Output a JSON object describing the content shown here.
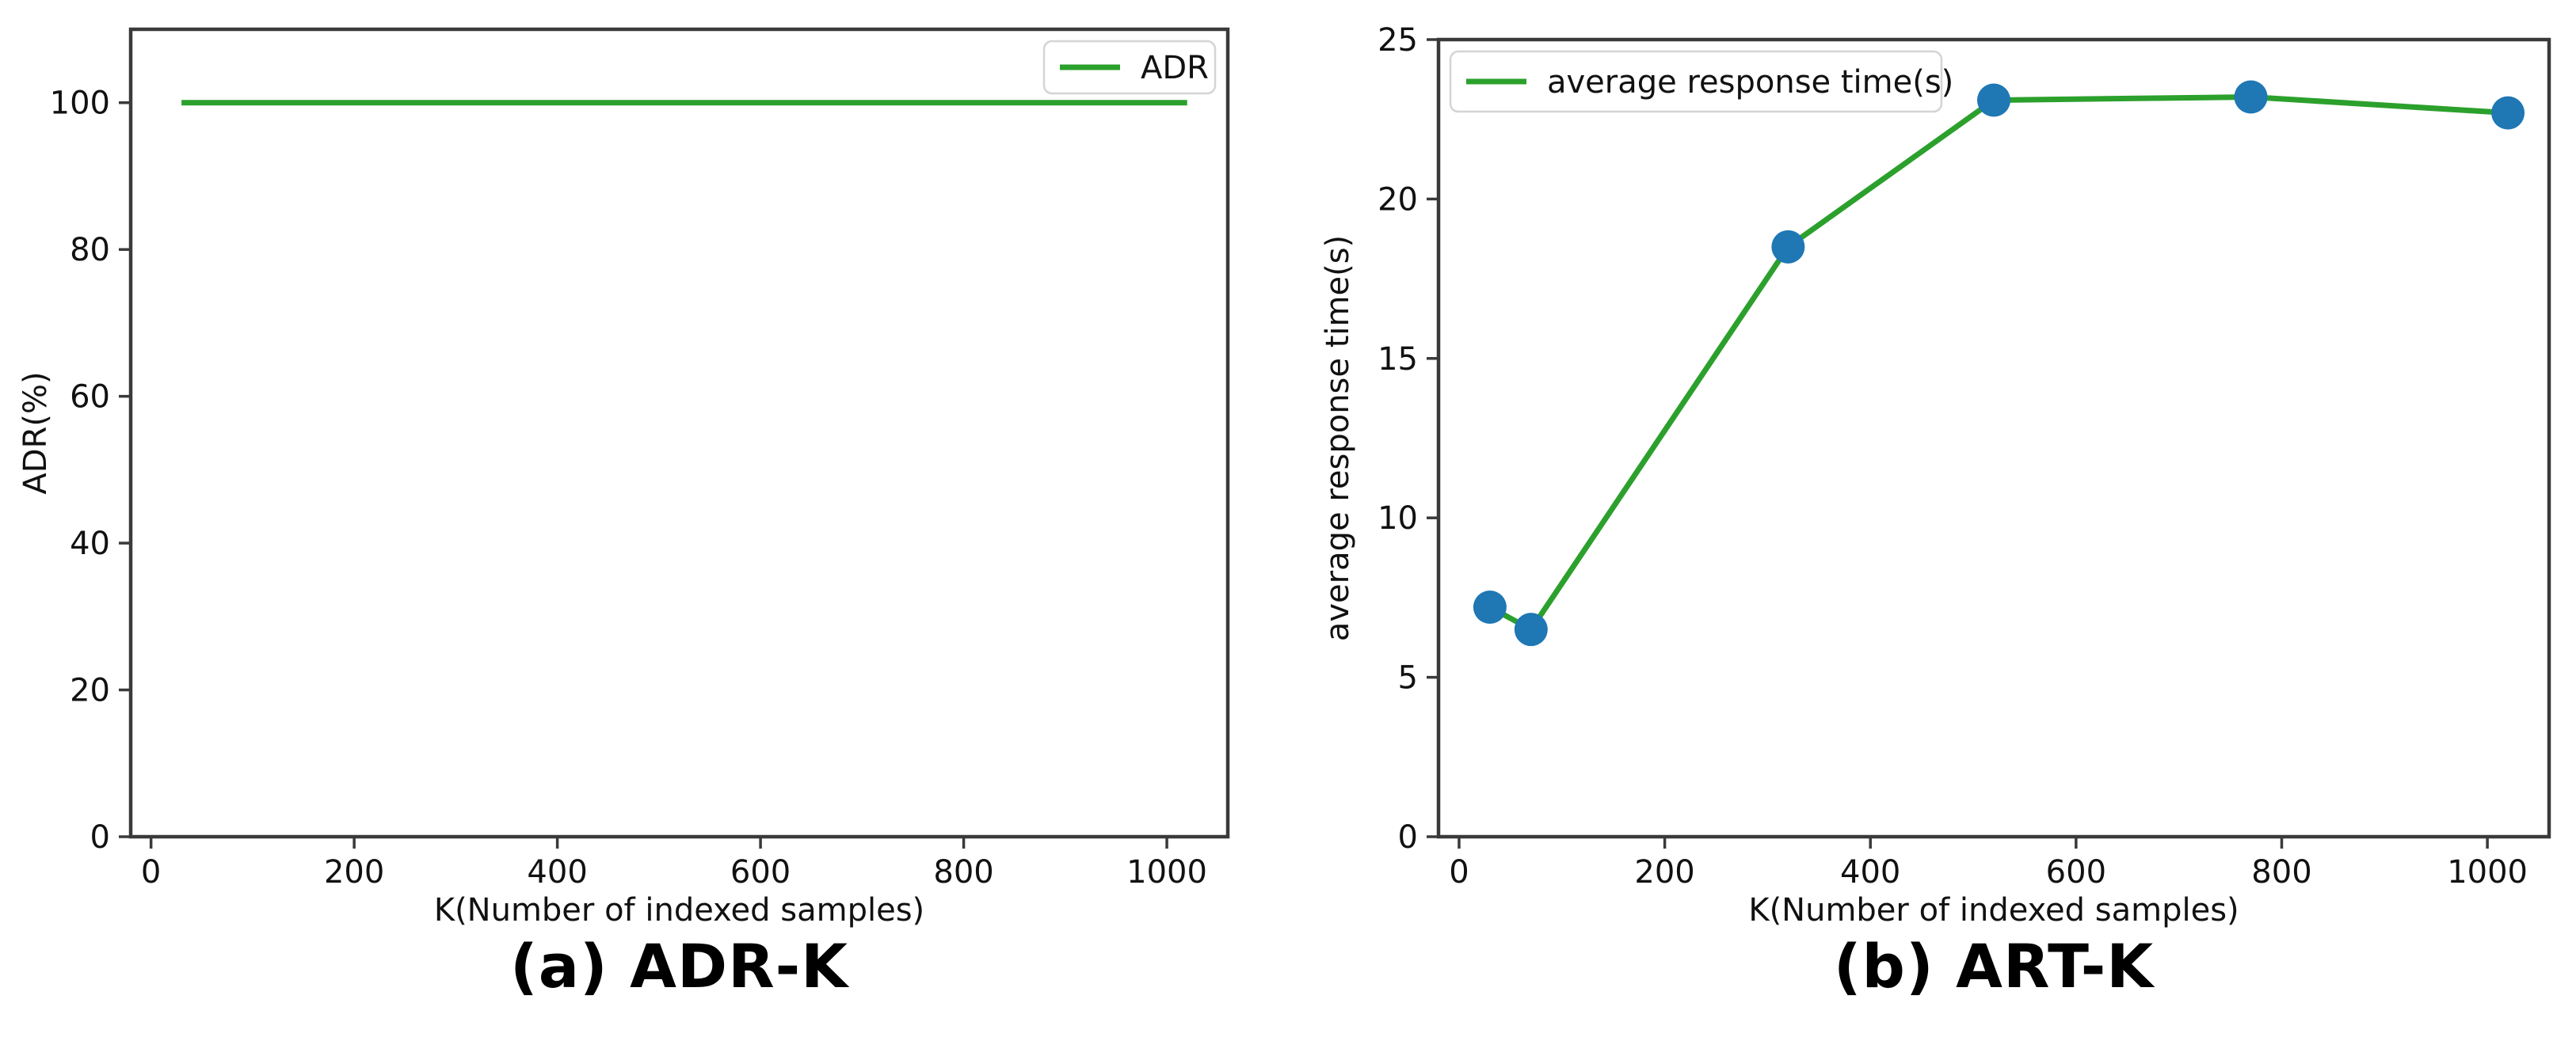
{
  "figure": {
    "background": "#ffffff"
  },
  "colors": {
    "line_green": "#2ca02c",
    "marker_blue": "#1f77b4",
    "axis": "#3a3a3a",
    "text": "#111111",
    "legend_border": "#d4d4d4",
    "legend_fill": "#ffffff"
  },
  "chart_data": [
    {
      "type": "line",
      "caption": "(a) ADR-K",
      "xlabel": "K(Number of indexed samples)",
      "ylabel": "ADR(%)",
      "xlim": [
        -20,
        1060
      ],
      "ylim": [
        0,
        110
      ],
      "xticks": [
        0,
        200,
        400,
        600,
        800,
        1000
      ],
      "yticks": [
        0,
        20,
        40,
        60,
        80,
        100
      ],
      "grid": false,
      "legend": {
        "label": "ADR",
        "position": "top-right"
      },
      "series": [
        {
          "name": "ADR",
          "x": [
            30,
            70,
            320,
            520,
            770,
            1020
          ],
          "y": [
            100,
            100,
            100,
            100,
            100,
            100
          ],
          "color": "#2ca02c",
          "marker": false
        }
      ]
    },
    {
      "type": "line",
      "caption": "(b) ART-K",
      "xlabel": "K(Number of indexed samples)",
      "ylabel": "average response time(s)",
      "xlim": [
        -20,
        1060
      ],
      "ylim": [
        0,
        25
      ],
      "xticks": [
        0,
        200,
        400,
        600,
        800,
        1000
      ],
      "yticks": [
        0,
        5,
        10,
        15,
        20,
        25
      ],
      "grid": false,
      "legend": {
        "label": "average response time(s)",
        "position": "top-left"
      },
      "series": [
        {
          "name": "average response time(s)",
          "x": [
            30,
            70,
            320,
            520,
            770,
            1020
          ],
          "y": [
            7.2,
            6.5,
            18.5,
            23.1,
            23.2,
            22.7
          ],
          "color": "#2ca02c",
          "marker": true,
          "marker_color": "#1f77b4"
        }
      ]
    }
  ]
}
